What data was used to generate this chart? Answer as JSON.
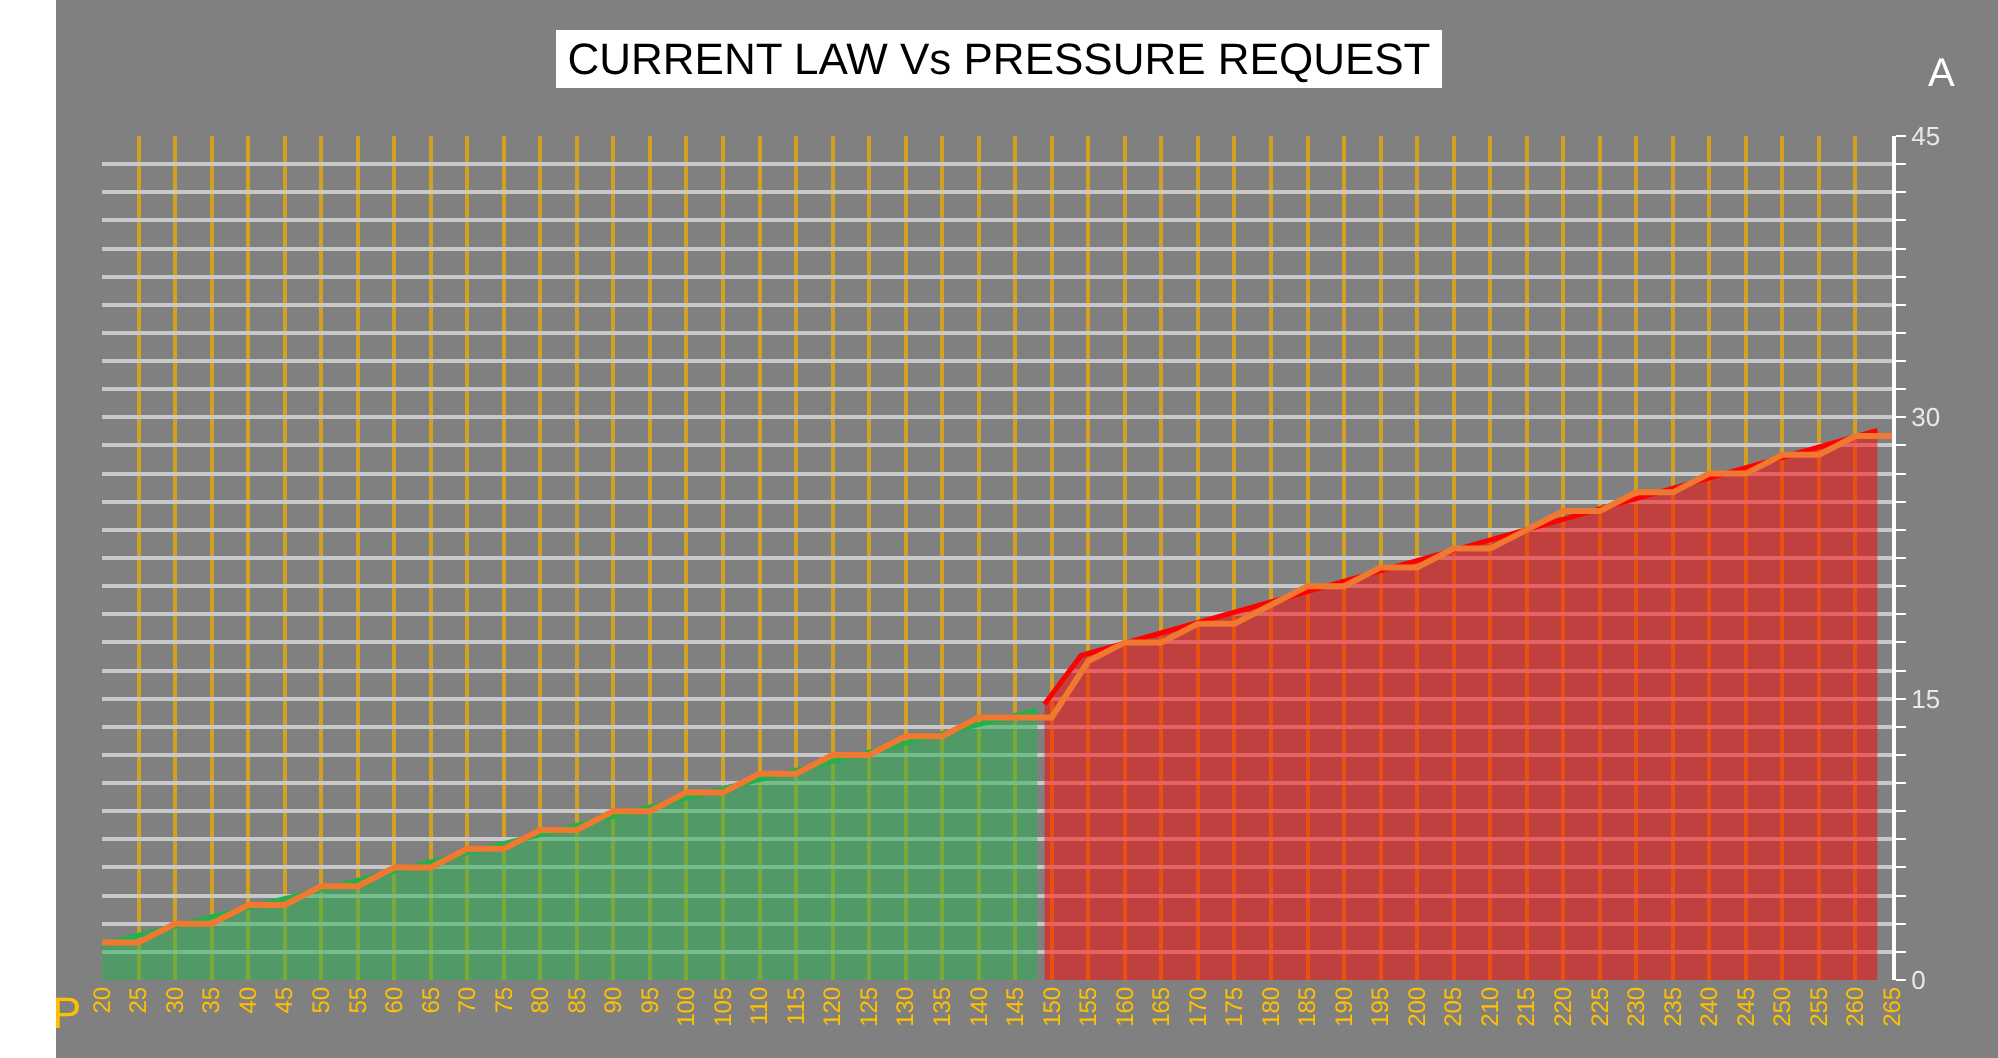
{
  "chart_data": {
    "type": "area",
    "title": "CURRENT LAW Vs PRESSURE REQUEST",
    "xlabel": "P",
    "ylabel": "A",
    "xlim": [
      20,
      265
    ],
    "xticks": [
      20,
      25,
      30,
      35,
      40,
      45,
      50,
      55,
      60,
      65,
      70,
      75,
      80,
      85,
      90,
      95,
      100,
      105,
      110,
      115,
      120,
      125,
      130,
      135,
      140,
      145,
      150,
      155,
      160,
      165,
      170,
      175,
      180,
      185,
      190,
      195,
      200,
      205,
      210,
      215,
      220,
      225,
      230,
      235,
      240,
      245,
      250,
      255,
      260,
      265
    ],
    "ylim": [
      0,
      45
    ],
    "yticks": [
      0,
      {
        "value": 1.5,
        "label": null
      },
      {
        "value": 3,
        "label": null
      },
      {
        "value": 4.5,
        "label": null
      },
      {
        "value": 6,
        "label": null
      },
      {
        "value": 7.5,
        "label": null
      },
      {
        "value": 9,
        "label": null
      },
      {
        "value": 10.5,
        "label": null
      },
      {
        "value": 12,
        "label": null
      },
      {
        "value": 13.5,
        "label": null
      },
      15,
      {
        "value": 16.5,
        "label": null
      },
      {
        "value": 18,
        "label": null
      },
      {
        "value": 19.5,
        "label": null
      },
      {
        "value": 21,
        "label": null
      },
      {
        "value": 22.5,
        "label": null
      },
      {
        "value": 24,
        "label": null
      },
      {
        "value": 25.5,
        "label": null
      },
      {
        "value": 27,
        "label": null
      },
      {
        "value": 28.5,
        "label": null
      },
      30,
      {
        "value": 31.5,
        "label": null
      },
      {
        "value": 33,
        "label": null
      },
      {
        "value": 34.5,
        "label": null
      },
      {
        "value": 36,
        "label": null
      },
      {
        "value": 37.5,
        "label": null
      },
      {
        "value": 39,
        "label": null
      },
      {
        "value": 40.5,
        "label": null
      },
      {
        "value": 42,
        "label": null
      },
      {
        "value": 43.5,
        "label": null
      },
      45
    ],
    "grid": true,
    "marker": "none",
    "series": [
      {
        "type": "line",
        "color": "#f07830",
        "x": [
          20,
          25,
          30,
          35,
          40,
          45,
          50,
          55,
          60,
          65,
          70,
          75,
          80,
          85,
          90,
          95,
          100,
          105,
          110,
          115,
          120,
          125,
          130,
          135,
          140,
          145,
          150,
          155,
          160,
          165,
          170,
          175,
          180,
          185,
          190,
          195,
          200,
          205,
          210,
          215,
          220,
          225,
          230,
          235,
          240,
          245,
          250,
          255,
          260,
          265
        ],
        "values": [
          2,
          2,
          3,
          3,
          4,
          4,
          5,
          5,
          6,
          6,
          7,
          7,
          8,
          8,
          9,
          9,
          10,
          10,
          11,
          11,
          12,
          12,
          13,
          13,
          14,
          14,
          14,
          17,
          18,
          18,
          19,
          19,
          20,
          21,
          21,
          22,
          22,
          23,
          23,
          24,
          25,
          25,
          26,
          26,
          27,
          27,
          28,
          28,
          29,
          29
        ]
      },
      {
        "color": "#22b14c",
        "x": [
          20,
          148
        ],
        "values": [
          1.9,
          14.4
        ]
      },
      {
        "color": "#ff0000",
        "x": [
          149,
          154,
          263
        ],
        "values": [
          14.7,
          17.3,
          29.3
        ]
      }
    ]
  }
}
